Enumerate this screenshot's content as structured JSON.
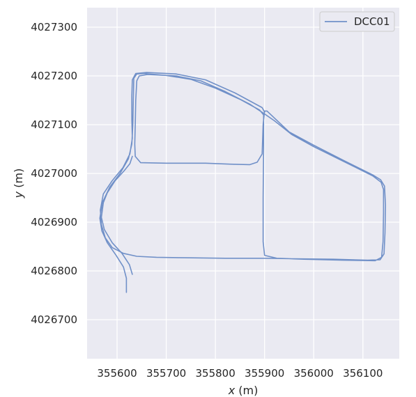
{
  "chart_data": {
    "type": "line",
    "title": "",
    "xlabel_var": "x",
    "xlabel_unit": " (m)",
    "ylabel_var": "y",
    "ylabel_unit": " (m)",
    "xlim": [
      355539,
      356174
    ],
    "ylim": [
      4026620,
      4027340
    ],
    "xticks": [
      355600,
      355700,
      355800,
      355900,
      356000,
      356100
    ],
    "xtick_labels": [
      "355600",
      "355700",
      "355800",
      "355900",
      "356000",
      "356100"
    ],
    "yticks": [
      4026700,
      4026800,
      4026900,
      4027000,
      4027100,
      4027200,
      4027300
    ],
    "ytick_labels": [
      "4026700",
      "4026800",
      "4026900",
      "4027000",
      "4027100",
      "4027200",
      "4027300"
    ],
    "grid": true,
    "legend_position": "upper-right",
    "colors": {
      "background": "#eaeaf2",
      "grid": "#ffffff",
      "series": "#7090c8"
    },
    "series": [
      {
        "name": "DCC01",
        "segments": [
          [
            [
              355619,
              4026756
            ],
            [
              355619,
              4026785
            ],
            [
              355613,
              4026808
            ],
            [
              355598,
              4026832
            ],
            [
              355580,
              4026858
            ],
            [
              355569,
              4026882
            ],
            [
              355565,
              4026908
            ],
            [
              355570,
              4026940
            ],
            [
              355585,
              4026972
            ],
            [
              355606,
              4027000
            ],
            [
              355623,
              4027030
            ],
            [
              355630,
              4027060
            ],
            [
              355632,
              4027100
            ],
            [
              355633,
              4027150
            ],
            [
              355634,
              4027195
            ],
            [
              355640,
              4027204
            ],
            [
              355655,
              4027205
            ],
            [
              355700,
              4027201
            ],
            [
              355750,
              4027193
            ],
            [
              355800,
              4027175
            ],
            [
              355850,
              4027152
            ],
            [
              355890,
              4027130
            ],
            [
              355898,
              4027120
            ],
            [
              355898,
              4027050
            ],
            [
              355897,
              4026950
            ],
            [
              355897,
              4026860
            ],
            [
              355900,
              4026832
            ],
            [
              355925,
              4026826
            ],
            [
              355980,
              4026824
            ],
            [
              356060,
              4026822
            ],
            [
              356125,
              4026821
            ],
            [
              356138,
              4026828
            ],
            [
              356141,
              4026860
            ],
            [
              356142,
              4026920
            ],
            [
              356142,
              4026967
            ],
            [
              356137,
              4026982
            ],
            [
              356120,
              4026995
            ],
            [
              356060,
              4027025
            ],
            [
              356000,
              4027055
            ],
            [
              355955,
              4027080
            ],
            [
              355920,
              4027108
            ],
            [
              355900,
              4027122
            ],
            [
              355870,
              4027142
            ],
            [
              355820,
              4027168
            ],
            [
              355770,
              4027190
            ],
            [
              355720,
              4027200
            ],
            [
              355662,
              4027203
            ],
            [
              355645,
              4027200
            ],
            [
              355640,
              4027190
            ],
            [
              355638,
              4027150
            ],
            [
              355637,
              4027100
            ],
            [
              355636,
              4027060
            ],
            [
              355637,
              4027035
            ],
            [
              355648,
              4027022
            ],
            [
              355700,
              4027021
            ],
            [
              355780,
              4027021
            ],
            [
              355830,
              4027019
            ],
            [
              355870,
              4027018
            ],
            [
              355885,
              4027023
            ],
            [
              355895,
              4027040
            ],
            [
              355897,
              4027100
            ],
            [
              355900,
              4027128
            ],
            [
              355905,
              4027128
            ],
            [
              355950,
              4027085
            ],
            [
              356000,
              4027058
            ],
            [
              356060,
              4027027
            ],
            [
              356120,
              4026997
            ],
            [
              356136,
              4026987
            ],
            [
              356144,
              4026974
            ],
            [
              356146,
              4026935
            ],
            [
              356145,
              4026878
            ],
            [
              356143,
              4026835
            ],
            [
              356135,
              4026823
            ],
            [
              356110,
              4026822
            ],
            [
              356040,
              4026824
            ],
            [
              355960,
              4026825
            ],
            [
              355900,
              4026826
            ],
            [
              355820,
              4026826
            ],
            [
              355740,
              4026827
            ],
            [
              355680,
              4026828
            ],
            [
              355640,
              4026830
            ],
            [
              355613,
              4026836
            ],
            [
              355590,
              4026848
            ],
            [
              355576,
              4026868
            ],
            [
              355568,
              4026895
            ],
            [
              355566,
              4026925
            ],
            [
              355572,
              4026958
            ],
            [
              355590,
              4026985
            ],
            [
              355612,
              4027012
            ],
            [
              355626,
              4027040
            ],
            [
              355631,
              4027072
            ],
            [
              355630,
              4027110
            ],
            [
              355630,
              4027160
            ],
            [
              355631,
              4027192
            ],
            [
              355638,
              4027205
            ],
            [
              355660,
              4027207
            ],
            [
              355720,
              4027204
            ],
            [
              355780,
              4027192
            ],
            [
              355840,
              4027165
            ],
            [
              355895,
              4027135
            ],
            [
              355900,
              4027126
            ]
          ],
          [
            [
              355631,
              4026793
            ],
            [
              355625,
              4026813
            ],
            [
              355610,
              4026836
            ],
            [
              355590,
              4026858
            ],
            [
              355574,
              4026885
            ],
            [
              355568,
              4026910
            ],
            [
              355572,
              4026940
            ],
            [
              355580,
              4026960
            ],
            [
              355596,
              4026985
            ],
            [
              355614,
              4027005
            ],
            [
              355626,
              4027020
            ],
            [
              355631,
              4027035
            ]
          ]
        ]
      }
    ]
  }
}
